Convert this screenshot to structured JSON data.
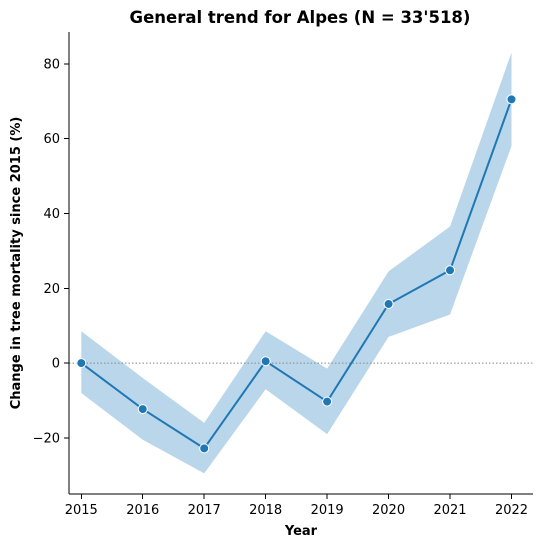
{
  "chart_data": {
    "type": "line",
    "title": "General trend for Alpes  (N = 33'518)",
    "xlabel": "Year",
    "ylabel": "Change in tree mortality since 2015 (%)",
    "x": [
      2015,
      2016,
      2017,
      2018,
      2019,
      2020,
      2021,
      2022
    ],
    "series": [
      {
        "values": [
          0,
          -12.3,
          -22.8,
          0.5,
          -10.3,
          15.8,
          24.8,
          70.5
        ],
        "ci_lower": [
          -8,
          -20.5,
          -29.5,
          -7,
          -19,
          7,
          13,
          58
        ],
        "ci_upper": [
          8.5,
          -4,
          -16,
          8.5,
          -1.5,
          24.5,
          36.5,
          83
        ]
      }
    ],
    "xticks": [
      "2015",
      "2016",
      "2017",
      "2018",
      "2019",
      "2020",
      "2021",
      "2022"
    ],
    "yticks": [
      "−20",
      "0",
      "20",
      "40",
      "60",
      "80"
    ],
    "ytick_values": [
      -20,
      0,
      20,
      40,
      60,
      80
    ],
    "xlim": [
      2014.8,
      2022.35
    ],
    "ylim": [
      -35,
      88.5
    ],
    "reference_line": 0,
    "grid": false,
    "legend": "none",
    "colors": {
      "line": "#1f77b4",
      "band": "#bad6ea",
      "marker_edge": "#ffffff",
      "reference": "#888888"
    }
  }
}
